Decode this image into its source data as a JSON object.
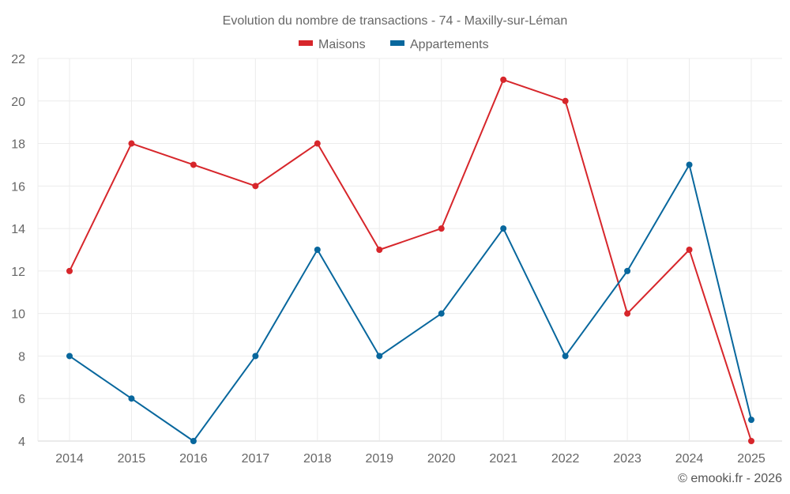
{
  "chart_data": {
    "type": "line",
    "title": "Evolution du nombre de transactions - 74 - Maxilly-sur-Léman",
    "xlabel": "",
    "ylabel": "",
    "categories": [
      "2014",
      "2015",
      "2016",
      "2017",
      "2018",
      "2019",
      "2020",
      "2021",
      "2022",
      "2023",
      "2024",
      "2025"
    ],
    "series": [
      {
        "name": "Maisons",
        "color": "#d7262b",
        "values": [
          12,
          18,
          17,
          16,
          18,
          13,
          14,
          21,
          20,
          10,
          13,
          4
        ]
      },
      {
        "name": "Appartements",
        "color": "#08679d",
        "values": [
          8,
          6,
          4,
          8,
          13,
          8,
          10,
          14,
          8,
          12,
          17,
          5
        ]
      }
    ],
    "ylim": [
      4,
      22
    ],
    "yticks": [
      4,
      6,
      8,
      10,
      12,
      14,
      16,
      18,
      20,
      22
    ],
    "grid": true,
    "legend_position": "top-center",
    "credit": "© emooki.fr - 2026"
  }
}
